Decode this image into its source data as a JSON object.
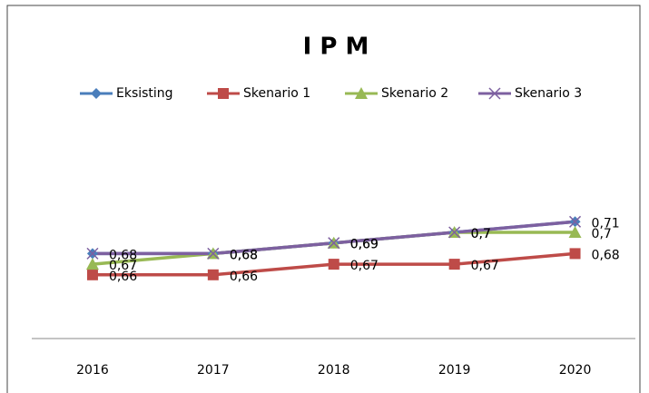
{
  "chart_data": {
    "type": "line",
    "title": "I P M",
    "categories": [
      "2016",
      "2017",
      "2018",
      "2019",
      "2020"
    ],
    "ylim": [
      0.6,
      0.8
    ],
    "legend": "top",
    "series": [
      {
        "name": "Eksisting",
        "color": "#4a7ebb",
        "marker": "diamond",
        "values": [
          0.68,
          0.68,
          0.69,
          0.7,
          0.71
        ]
      },
      {
        "name": "Skenario 1",
        "color": "#be4b48",
        "marker": "square",
        "values": [
          0.66,
          0.66,
          0.67,
          0.67,
          0.68
        ],
        "value_labels": [
          "0,66",
          "0,66",
          "0,67",
          "0,67",
          "0,68"
        ]
      },
      {
        "name": "Skenario 2",
        "color": "#98b954",
        "marker": "triangle",
        "values": [
          0.67,
          0.68,
          0.69,
          0.7,
          0.7
        ],
        "value_labels": [
          "0,67",
          "0,68",
          "0,69",
          "0,7",
          "0,7"
        ]
      },
      {
        "name": "Skenario 3",
        "color": "#7d60a0",
        "marker": "x",
        "values": [
          0.68,
          0.68,
          0.69,
          0.7,
          0.71
        ],
        "value_labels": [
          "0,68",
          "0,68",
          "0,69",
          "0,7",
          "0,71"
        ]
      }
    ]
  }
}
